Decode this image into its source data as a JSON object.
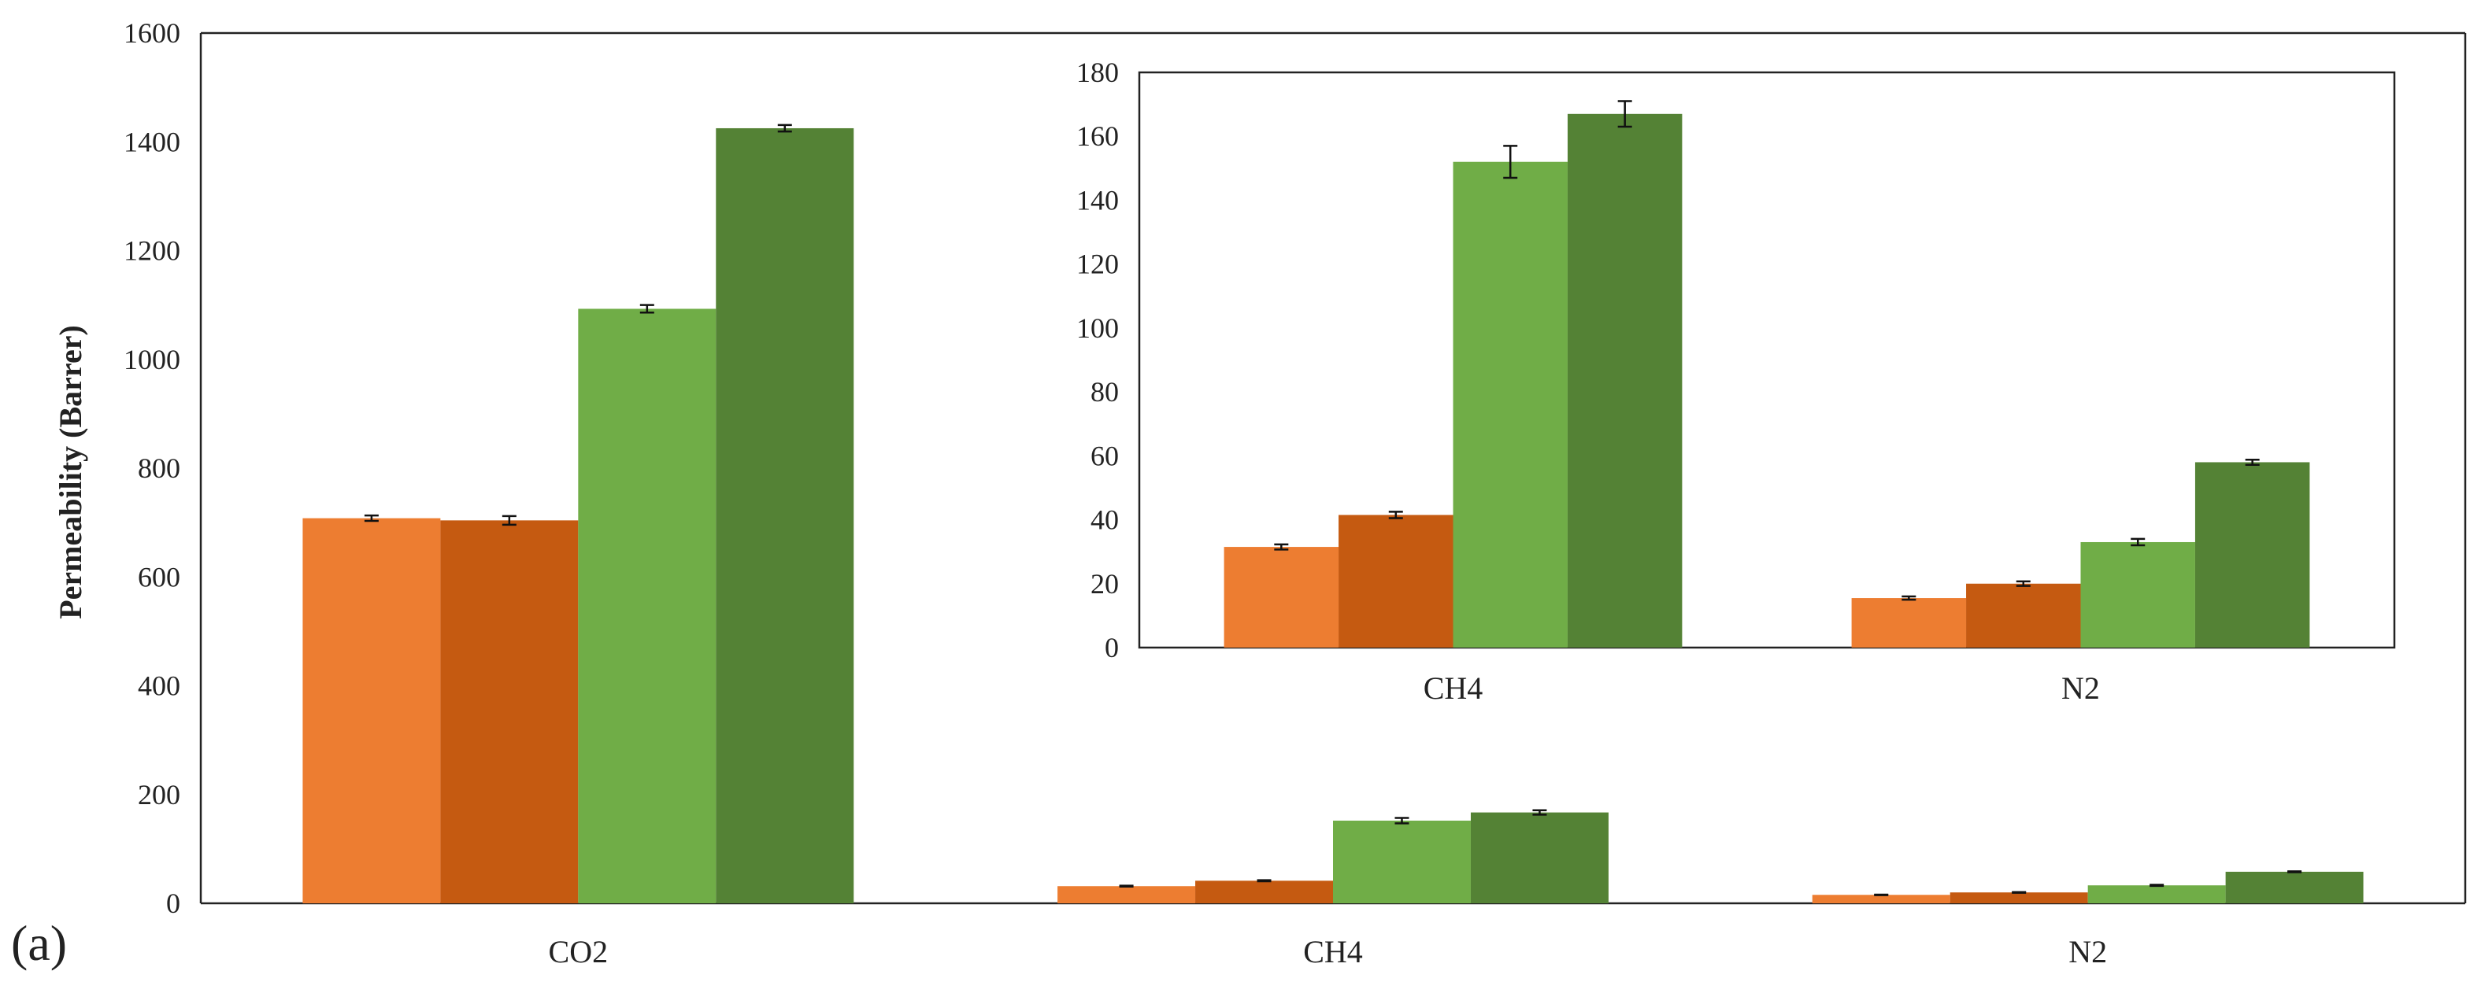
{
  "chart_data": [
    {
      "type": "bar",
      "panel_label": "(a)",
      "ylabel": "Permeability (Barrer)",
      "xlabel": "",
      "ylim": [
        0,
        1600
      ],
      "yticks": [
        "0",
        "200",
        "400",
        "600",
        "800",
        "1000",
        "1200",
        "1400",
        "1600"
      ],
      "categories": [
        "CO2",
        "CH4",
        "N2"
      ],
      "series": [
        {
          "color": "#ED7D31",
          "values": [
            708,
            31.5,
            15.5
          ],
          "errors": [
            5,
            0.8,
            0.5
          ]
        },
        {
          "color": "#C55A11",
          "values": [
            704,
            41.5,
            20
          ],
          "errors": [
            8,
            1,
            0.7
          ]
        },
        {
          "color": "#70AD47",
          "values": [
            1093,
            152,
            33
          ],
          "errors": [
            7,
            5,
            1
          ]
        },
        {
          "color": "#548235",
          "values": [
            1425,
            167,
            58
          ],
          "errors": [
            6,
            4,
            0.8
          ]
        }
      ],
      "grid": false,
      "legend": "none"
    },
    {
      "type": "bar",
      "inset": true,
      "ylim": [
        0,
        180
      ],
      "yticks": [
        "0",
        "20",
        "40",
        "60",
        "80",
        "100",
        "120",
        "140",
        "160",
        "180"
      ],
      "categories": [
        "CH4",
        "N2"
      ],
      "series": [
        {
          "color": "#ED7D31",
          "values": [
            31.5,
            15.5
          ],
          "errors": [
            0.8,
            0.5
          ]
        },
        {
          "color": "#C55A11",
          "values": [
            41.5,
            20
          ],
          "errors": [
            1,
            0.7
          ]
        },
        {
          "color": "#70AD47",
          "values": [
            152,
            33
          ],
          "errors": [
            5,
            1
          ]
        },
        {
          "color": "#548235",
          "values": [
            167,
            58
          ],
          "errors": [
            4,
            0.8
          ]
        }
      ],
      "grid": false,
      "legend": "none"
    }
  ]
}
